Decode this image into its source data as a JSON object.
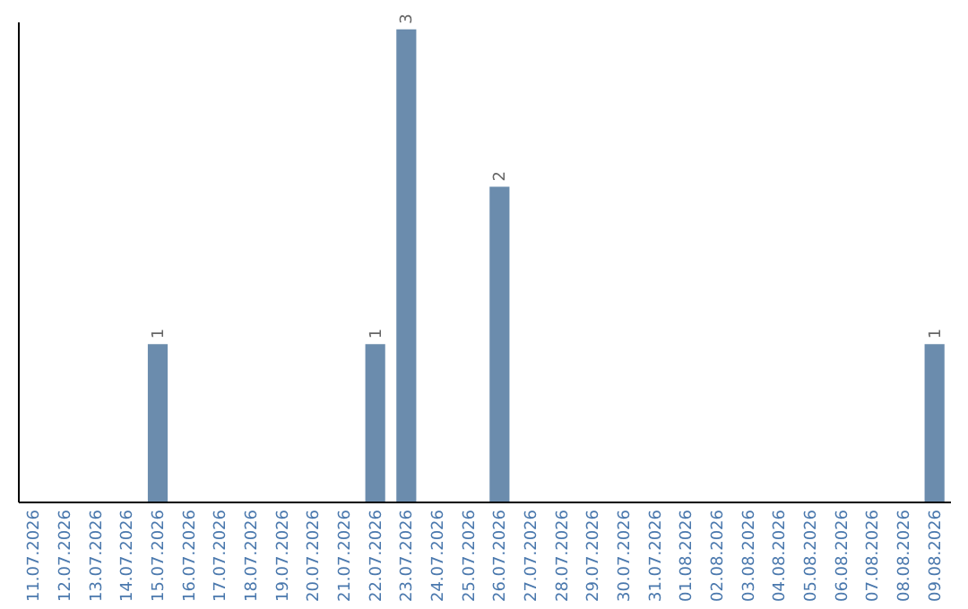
{
  "chart_data": {
    "type": "bar",
    "categories": [
      "11.07.2026",
      "12.07.2026",
      "13.07.2026",
      "14.07.2026",
      "15.07.2026",
      "16.07.2026",
      "17.07.2026",
      "18.07.2026",
      "19.07.2026",
      "20.07.2026",
      "21.07.2026",
      "22.07.2026",
      "23.07.2026",
      "24.07.2026",
      "25.07.2026",
      "26.07.2026",
      "27.07.2026",
      "28.07.2026",
      "29.07.2026",
      "30.07.2026",
      "31.07.2026",
      "01.08.2026",
      "02.08.2026",
      "03.08.2026",
      "04.08.2026",
      "05.08.2026",
      "06.08.2026",
      "07.08.2026",
      "08.08.2026",
      "09.08.2026"
    ],
    "values": [
      0,
      0,
      0,
      0,
      1,
      0,
      0,
      0,
      0,
      0,
      0,
      1,
      3,
      0,
      0,
      2,
      0,
      0,
      0,
      0,
      0,
      0,
      0,
      0,
      0,
      0,
      0,
      0,
      0,
      1
    ],
    "value_labels": [
      null,
      null,
      null,
      null,
      "1",
      null,
      null,
      null,
      null,
      null,
      null,
      "1",
      "3",
      null,
      null,
      "2",
      null,
      null,
      null,
      null,
      null,
      null,
      null,
      null,
      null,
      null,
      null,
      null,
      null,
      "1"
    ],
    "color": "#6b8cad",
    "ylim": [
      0,
      3.05
    ],
    "tick_labels": "x"
  }
}
